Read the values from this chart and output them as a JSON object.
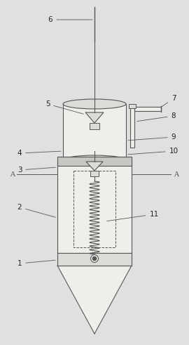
{
  "fig_width": 2.7,
  "fig_height": 4.91,
  "dpi": 100,
  "bg_color": "#e0e0e0",
  "line_color": "#555555",
  "fill_light": "#f0eeea",
  "fill_mid": "#dddbd7",
  "fill_dark": "#c8c6c2"
}
